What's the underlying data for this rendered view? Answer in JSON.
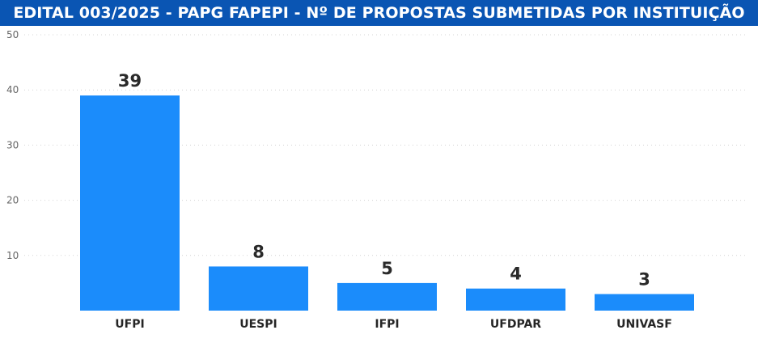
{
  "chart_data": {
    "type": "bar",
    "title": "EDITAL 003/2025 - PAPG FAPEPI - Nº DE PROPOSTAS SUBMETIDAS POR INSTITUIÇÃO",
    "categories": [
      "UFPI",
      "UESPI",
      "IFPI",
      "UFDPAR",
      "UNIVASF"
    ],
    "values": [
      39,
      8,
      5,
      4,
      3
    ],
    "data_labels": [
      "39",
      "8",
      "5",
      "4",
      "3"
    ],
    "ylim": [
      0,
      50
    ],
    "yticks": [
      "10",
      "20",
      "30",
      "40",
      "50"
    ],
    "grid": true,
    "bar_color": "#1b8cfb",
    "title_bg_color": "#0a55b3"
  }
}
